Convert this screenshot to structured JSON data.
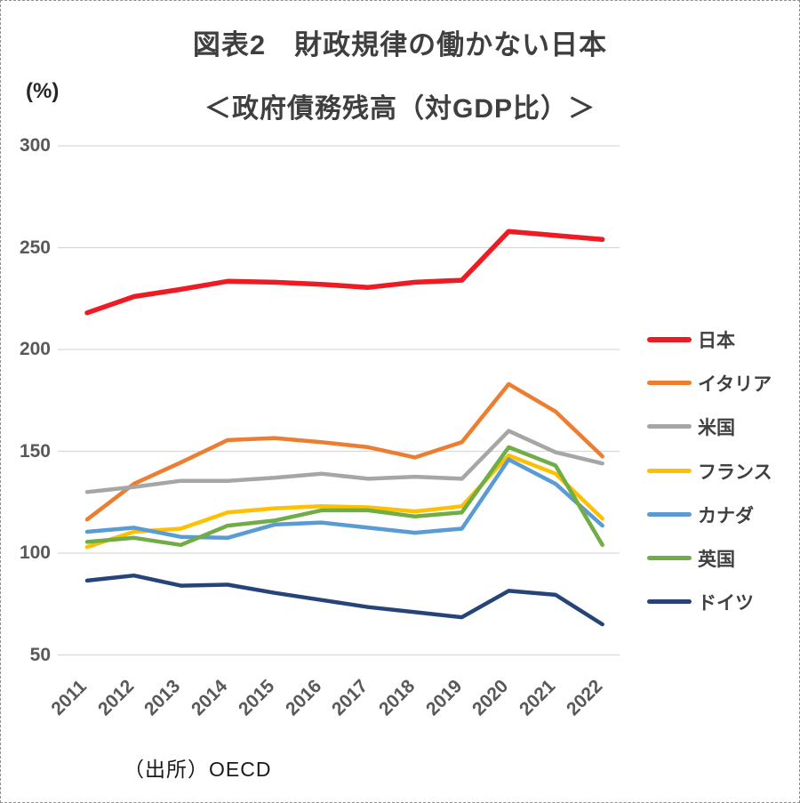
{
  "figure": {
    "title": "図表2　財政規律の働かない日本",
    "subtitle": "＜政府債務残高（対GDP比）＞",
    "y_unit_label": "(%)",
    "source_note": "（出所）OECD"
  },
  "colors": {
    "gridline": "#d9d9d9",
    "title_text": "#3f3f3f",
    "axis_text": "#595959",
    "japan_red": "#ed1c24",
    "italy_orange": "#ed7d31",
    "usa_gray": "#a6a6a6",
    "france_yellow": "#ffc000",
    "canada_blue": "#5b9bd5",
    "uk_green": "#70ad47",
    "germany_navy": "#264478"
  },
  "chart_data": {
    "type": "line",
    "title": "図表2　財政規律の働かない日本",
    "subtitle": "＜政府債務残高（対GDP比）＞",
    "unit": "%",
    "categories": [
      "2011",
      "2012",
      "2013",
      "2014",
      "2015",
      "2016",
      "2017",
      "2018",
      "2019",
      "2020",
      "2021",
      "2022"
    ],
    "series": [
      {
        "name": "日本",
        "color": "#ed1c24",
        "values": [
          218,
          226,
          229.5,
          233.5,
          233,
          232,
          230.5,
          233,
          234,
          258,
          256,
          254
        ]
      },
      {
        "name": "イタリア",
        "color": "#ed7d31",
        "values": [
          116.5,
          134,
          144.5,
          155.5,
          156.5,
          154.5,
          152,
          147,
          154.5,
          183,
          169.5,
          147.5
        ]
      },
      {
        "name": "米国",
        "color": "#a6a6a6",
        "values": [
          130,
          132.5,
          135.5,
          135.5,
          137,
          139,
          136.5,
          137.5,
          136.5,
          160,
          149.5,
          144
        ]
      },
      {
        "name": "フランス",
        "color": "#ffc000",
        "values": [
          103,
          110.5,
          112,
          120,
          122,
          123,
          122.5,
          120.5,
          123,
          148,
          139,
          117
        ]
      },
      {
        "name": "カナダ",
        "color": "#5b9bd5",
        "values": [
          110.5,
          112.5,
          108,
          107.5,
          114,
          115,
          112.5,
          110,
          112,
          146,
          134,
          113.5
        ]
      },
      {
        "name": "英国",
        "color": "#70ad47",
        "values": [
          105.5,
          107.5,
          104,
          113.5,
          116,
          121,
          121,
          118,
          120,
          152,
          143,
          104
        ]
      },
      {
        "name": "ドイツ",
        "color": "#264478",
        "values": [
          86.5,
          89,
          84,
          84.5,
          80.5,
          77,
          73.5,
          71,
          68.5,
          81.5,
          79.5,
          65
        ]
      }
    ],
    "ylim": [
      50,
      300
    ],
    "y_ticks": [
      300,
      250,
      200,
      150,
      100,
      50
    ],
    "grid": "horizontal-only",
    "legend_position": "right"
  }
}
